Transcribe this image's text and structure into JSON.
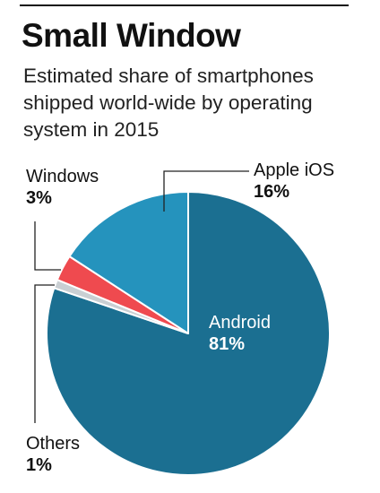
{
  "chart_data": {
    "type": "pie",
    "title": "Small Window",
    "subtitle": "Estimated share of smartphones shipped world-wide by operating system in 2015",
    "slices": [
      {
        "label": "Android",
        "value": 81,
        "value_label": "81%",
        "color": "#1b6f91"
      },
      {
        "label": "Others",
        "value": 1,
        "value_label": "1%",
        "color": "#c9cfd3"
      },
      {
        "label": "Windows",
        "value": 3,
        "value_label": "3%",
        "color": "#ef4a4f"
      },
      {
        "label": "Apple iOS",
        "value": 16,
        "value_label": "16%",
        "color": "#2593bd"
      }
    ],
    "start_angle_deg": 0,
    "direction": "clockwise",
    "legend": "none",
    "label_style": "callout lines"
  }
}
